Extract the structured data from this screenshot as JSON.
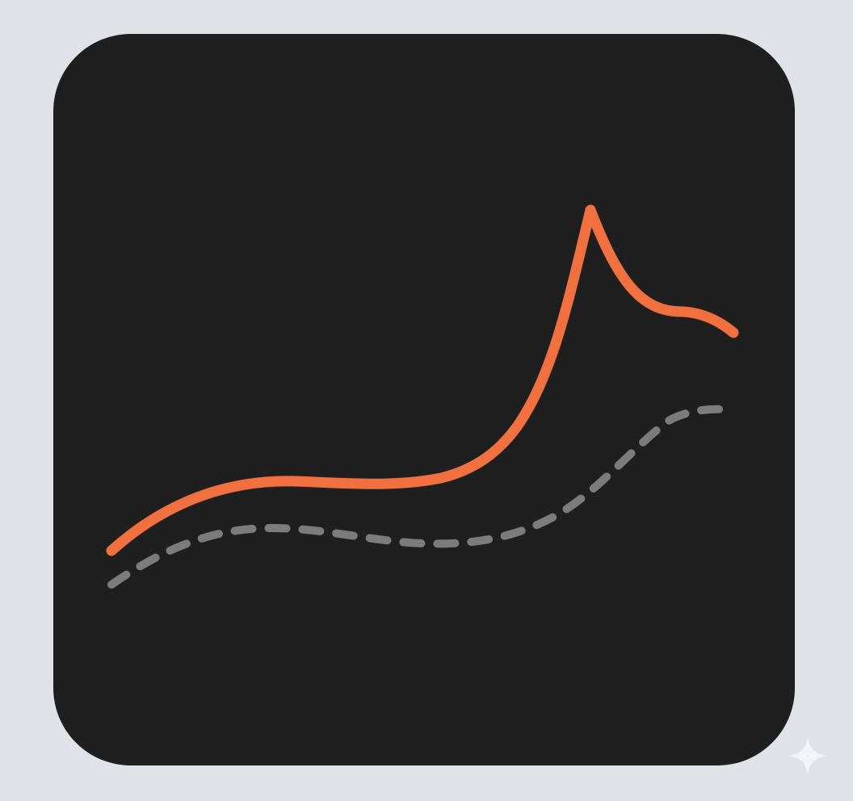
{
  "icon": {
    "semantic": "trend-line-chart-icon",
    "colors": {
      "page_background": "#dfe3e8",
      "tile": "#1f1f1f",
      "primary_line": "#f07040",
      "secondary_line": "#7c7c7c",
      "sparkle": "#f2f4f7"
    }
  },
  "corner_mark": {
    "semantic": "sparkle-icon"
  }
}
